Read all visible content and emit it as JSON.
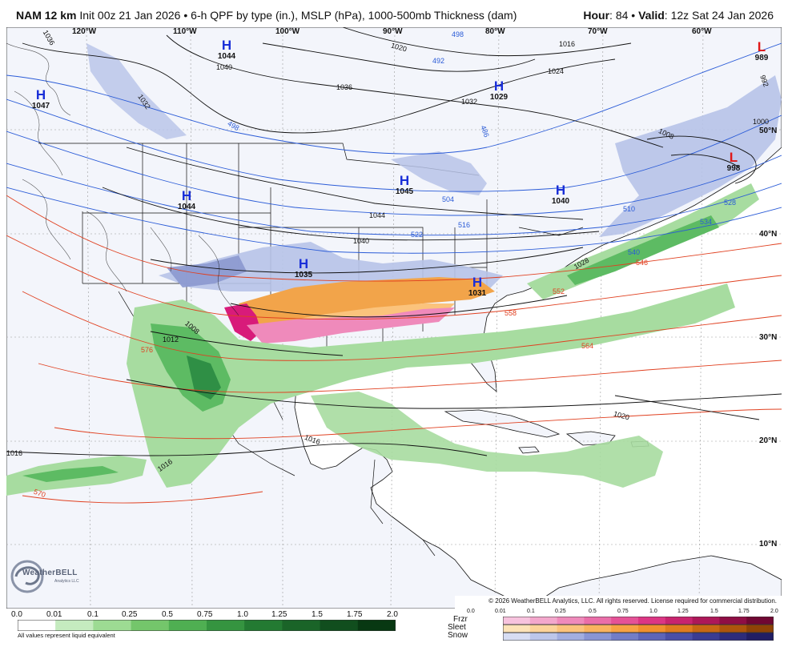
{
  "header": {
    "model": "NAM 12 km",
    "init": "Init 00z 21 Jan 2026",
    "separator": "•",
    "product": "6-h QPF by type (in.), MSLP (hPa), 1000-500mb Thickness (dam)",
    "hour_label": "Hour",
    "hour_value": "84",
    "valid_label": "Valid",
    "valid_value": "12z Sat 24 Jan 2026"
  },
  "map": {
    "lon_labels": [
      "120°W",
      "110°W",
      "100°W",
      "90°W",
      "80°W",
      "70°W",
      "60°W"
    ],
    "lat_labels": [
      "50°N",
      "40°N",
      "30°N",
      "20°N",
      "10°N"
    ],
    "pressure_centers": [
      {
        "type": "H",
        "value": "1044"
      },
      {
        "type": "H",
        "value": "1047"
      },
      {
        "type": "H",
        "value": "1044"
      },
      {
        "type": "H",
        "value": "1045"
      },
      {
        "type": "H",
        "value": "1029"
      },
      {
        "type": "H",
        "value": "1040"
      },
      {
        "type": "H",
        "value": "1035"
      },
      {
        "type": "H",
        "value": "1031"
      },
      {
        "type": "L",
        "value": "989"
      },
      {
        "type": "L",
        "value": "998"
      }
    ],
    "isobar_labels": [
      "1036",
      "1040",
      "1032",
      "1036",
      "1020",
      "1016",
      "1024",
      "1032",
      "1044",
      "1040",
      "1028",
      "1008",
      "1000",
      "1012",
      "1008",
      "1016",
      "1020",
      "1016",
      "1016",
      "992"
    ],
    "thickness_labels": [
      "498",
      "492",
      "486",
      "498",
      "504",
      "516",
      "522",
      "528",
      "534",
      "540",
      "546",
      "552",
      "558",
      "564",
      "570",
      "576",
      "510"
    ],
    "colors": {
      "land": "#f3f5fb",
      "ocean": "#ffffff",
      "isobar": "#111111",
      "thickness_cold": "#2a5bd7",
      "thickness_warm": "#e04020",
      "high": "#1a2fd8",
      "low": "#e01818",
      "snow_light": "#b7c3e8",
      "snow_mod": "#8b98cf",
      "sleet": "#f2a44a",
      "frzr": "#d81b7a",
      "rain_light": "#a7dca0",
      "rain_mod": "#5dbb63",
      "rain_heavy": "#2f8f45"
    },
    "logo_text": "WeatherBELL",
    "logo_sub": "Analytics LLC"
  },
  "copyright": "© 2026 WeatherBELL Analytics, LLC. All rights reserved. License required for commercial distribution.",
  "legend": {
    "rain_ticks": [
      "0.0",
      "0.01",
      "0.1",
      "0.25",
      "0.5",
      "0.75",
      "1.0",
      "1.25",
      "1.5",
      "1.75",
      "2.0"
    ],
    "rain_colors": [
      "#ffffff",
      "#c5ebbf",
      "#9ddb93",
      "#74c66b",
      "#4faf52",
      "#359440",
      "#237a32",
      "#1a6428",
      "#114e1e",
      "#083812"
    ],
    "note": "All values represent liquid equivalent",
    "type_labels": [
      "Frzr",
      "Sleet",
      "Snow"
    ],
    "mix_ticks": [
      "0.0",
      "0.01",
      "0.1",
      "0.25",
      "0.5",
      "0.75",
      "1.0",
      "1.25",
      "1.5",
      "1.75",
      "2.0"
    ],
    "frzr_colors": [
      "#f7c3de",
      "#f3a7cc",
      "#ef8abb",
      "#ea6ea9",
      "#e55297",
      "#dc3684",
      "#c8246f",
      "#ad1859",
      "#8f0e45",
      "#700733"
    ],
    "sleet_colors": [
      "#fde3b8",
      "#fcd39a",
      "#fbc37c",
      "#f9b35f",
      "#f7a244",
      "#f0902e",
      "#e07c1f",
      "#c86814",
      "#ad550c",
      "#8f4306"
    ],
    "snow_colors": [
      "#d7ddf3",
      "#bcc6ea",
      "#a2aee0",
      "#8995d4",
      "#727dc7",
      "#5d65b8",
      "#4a4fa6",
      "#3a3c92",
      "#2d2c7b",
      "#211e64"
    ]
  }
}
